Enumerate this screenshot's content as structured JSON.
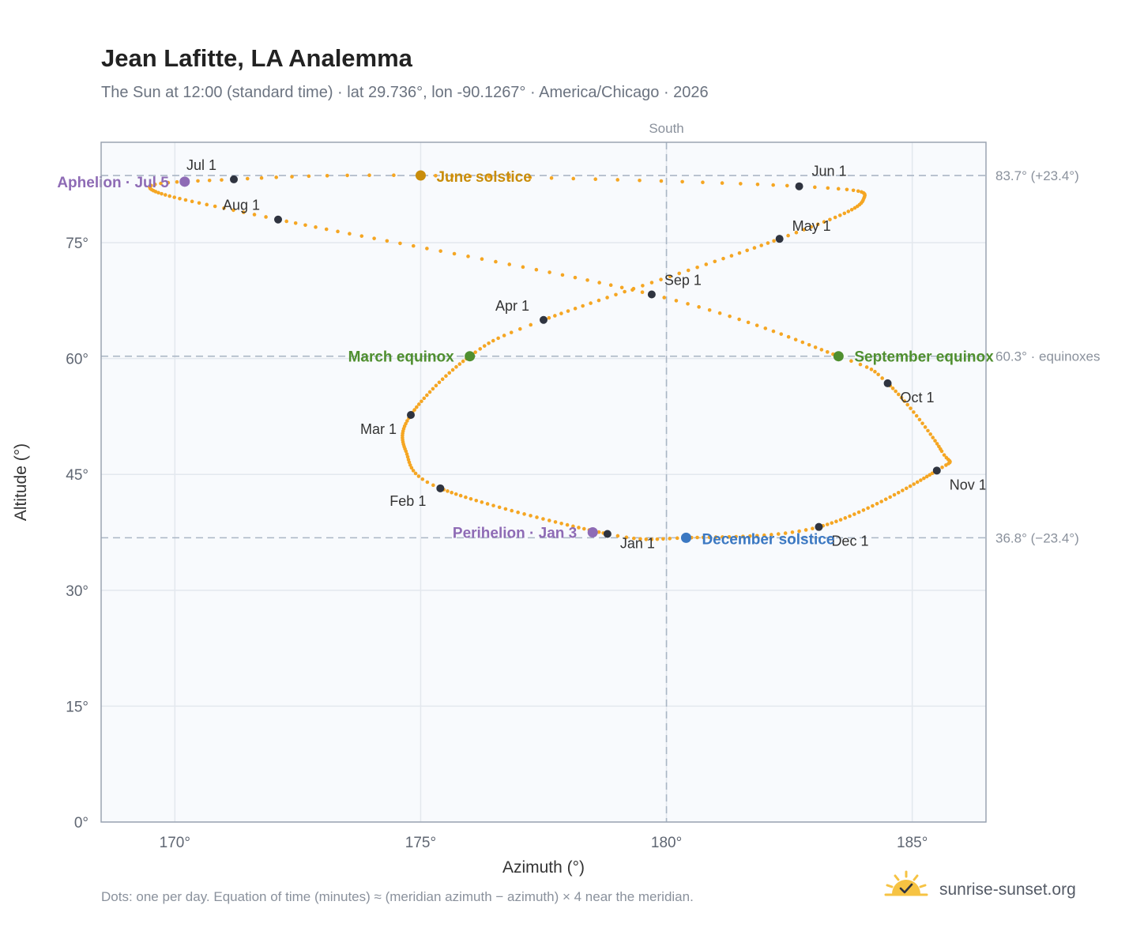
{
  "header": {
    "title": "Jean Lafitte, LA Analemma",
    "subtitle": "The Sun at 12:00 (standard time) · lat 29.736°, lon -90.1267° · America/Chicago · 2026"
  },
  "footer": {
    "note": "Dots: one per day. Equation of time (minutes) ≈ (meridian azimuth − azimuth) × 4 near the meridian.",
    "brand": "sunrise-sunset.org"
  },
  "colors": {
    "curve": "#f5a623",
    "month_dot": "#2f3440",
    "june_solstice": "#c98d0b",
    "december_solstice": "#3b78c2",
    "equinox": "#4f8f2f",
    "apsis": "#8e6bb5",
    "plot_bg": "#f8fafd",
    "grid": "#e3e8ee",
    "ref_line": "#aab6c5"
  },
  "chart_data": {
    "type": "scatter",
    "xlabel": "Azimuth (°)",
    "ylabel": "Altitude (°)",
    "xlim": [
      168.5,
      186.5
    ],
    "ylim": [
      0,
      88
    ],
    "x_ticks": [
      170,
      175,
      180,
      185
    ],
    "x_tick_labels": [
      "170°",
      "175°",
      "180°",
      "185°"
    ],
    "y_ticks": [
      0,
      15,
      30,
      45,
      60,
      75
    ],
    "y_tick_labels": [
      "0°",
      "15°",
      "30°",
      "45°",
      "60°",
      "75°"
    ],
    "grid": true,
    "meridian": {
      "azimuth": 180,
      "label": "South"
    },
    "reference_lines": [
      {
        "altitude": 83.7,
        "label": "83.7° (+23.4°)"
      },
      {
        "altitude": 60.3,
        "label": "60.3° · equinoxes"
      },
      {
        "altitude": 36.8,
        "label": "36.8° (−23.4°)"
      }
    ],
    "month_markers": [
      {
        "label": "Jan 1",
        "az": 178.8,
        "alt": 37.3
      },
      {
        "label": "Feb 1",
        "az": 175.4,
        "alt": 43.2
      },
      {
        "label": "Mar 1",
        "az": 174.8,
        "alt": 52.7
      },
      {
        "label": "Apr 1",
        "az": 177.5,
        "alt": 65.0
      },
      {
        "label": "May 1",
        "az": 182.3,
        "alt": 75.5
      },
      {
        "label": "Jun 1",
        "az": 182.7,
        "alt": 82.3
      },
      {
        "label": "Jul 1",
        "az": 171.2,
        "alt": 83.2
      },
      {
        "label": "Aug 1",
        "az": 172.1,
        "alt": 78.0
      },
      {
        "label": "Sep 1",
        "az": 179.7,
        "alt": 68.3
      },
      {
        "label": "Oct 1",
        "az": 184.5,
        "alt": 56.8
      },
      {
        "label": "Nov 1",
        "az": 185.5,
        "alt": 45.5
      },
      {
        "label": "Dec 1",
        "az": 183.1,
        "alt": 38.2
      }
    ],
    "events": [
      {
        "label": "June solstice",
        "az": 175.0,
        "alt": 83.7,
        "color_key": "june_solstice"
      },
      {
        "label": "December solstice",
        "az": 180.4,
        "alt": 36.8,
        "color_key": "december_solstice"
      },
      {
        "label": "March equinox",
        "az": 176.0,
        "alt": 60.3,
        "color_key": "equinox"
      },
      {
        "label": "September equinox",
        "az": 183.5,
        "alt": 60.3,
        "color_key": "equinox"
      },
      {
        "label": "Aphelion · Jul 5",
        "az": 170.2,
        "alt": 82.9,
        "color_key": "apsis"
      },
      {
        "label": "Perihelion · Jan 3",
        "az": 178.5,
        "alt": 37.5,
        "color_key": "apsis"
      }
    ]
  }
}
